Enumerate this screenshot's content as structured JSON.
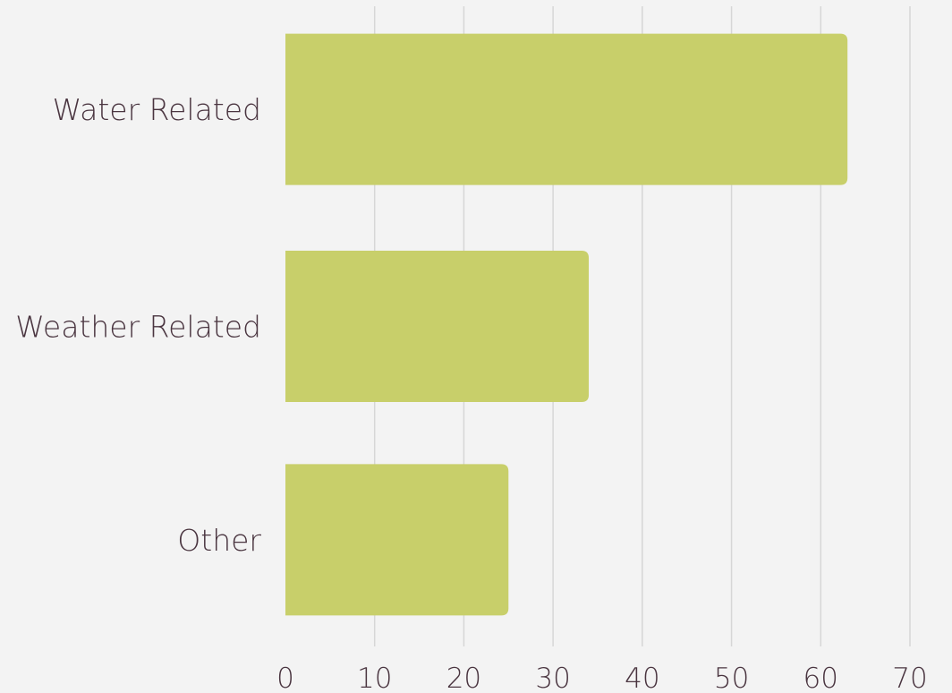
{
  "chart_data": {
    "type": "bar",
    "orientation": "horizontal",
    "categories": [
      "Water Related",
      "Weather Related",
      "Other"
    ],
    "values": [
      63,
      34,
      25
    ],
    "xlim": [
      0,
      70
    ],
    "xticks": [
      0,
      10,
      20,
      30,
      40,
      50,
      60,
      70
    ],
    "grid": "vertical",
    "title": "",
    "xlabel": "",
    "ylabel": ""
  },
  "colors": {
    "bar": "#c8cf6a",
    "background": "#f3f3f3",
    "grid": "#d6d6d6",
    "text": "#4a3540"
  }
}
